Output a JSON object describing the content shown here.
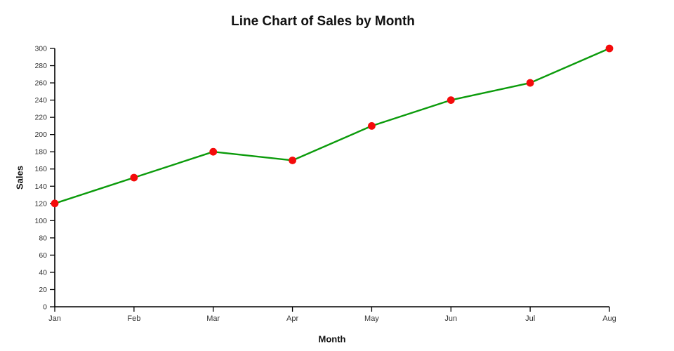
{
  "chart_data": {
    "type": "line",
    "title": "Line Chart of Sales by Month",
    "xlabel": "Month",
    "ylabel": "Sales",
    "categories": [
      "Jan",
      "Feb",
      "Mar",
      "Apr",
      "May",
      "Jun",
      "Jul",
      "Aug"
    ],
    "series": [
      {
        "name": "Sales",
        "values": [
          120,
          150,
          180,
          170,
          210,
          240,
          260,
          300
        ]
      }
    ],
    "ylim": [
      0,
      300
    ],
    "ytick_step": 20,
    "grid": false,
    "legend": "none",
    "colors": {
      "line": "#0b9b0b",
      "marker": "#f40b0b",
      "axis": "#000000",
      "tick_label": "#333333",
      "background": "#ffffff"
    }
  }
}
